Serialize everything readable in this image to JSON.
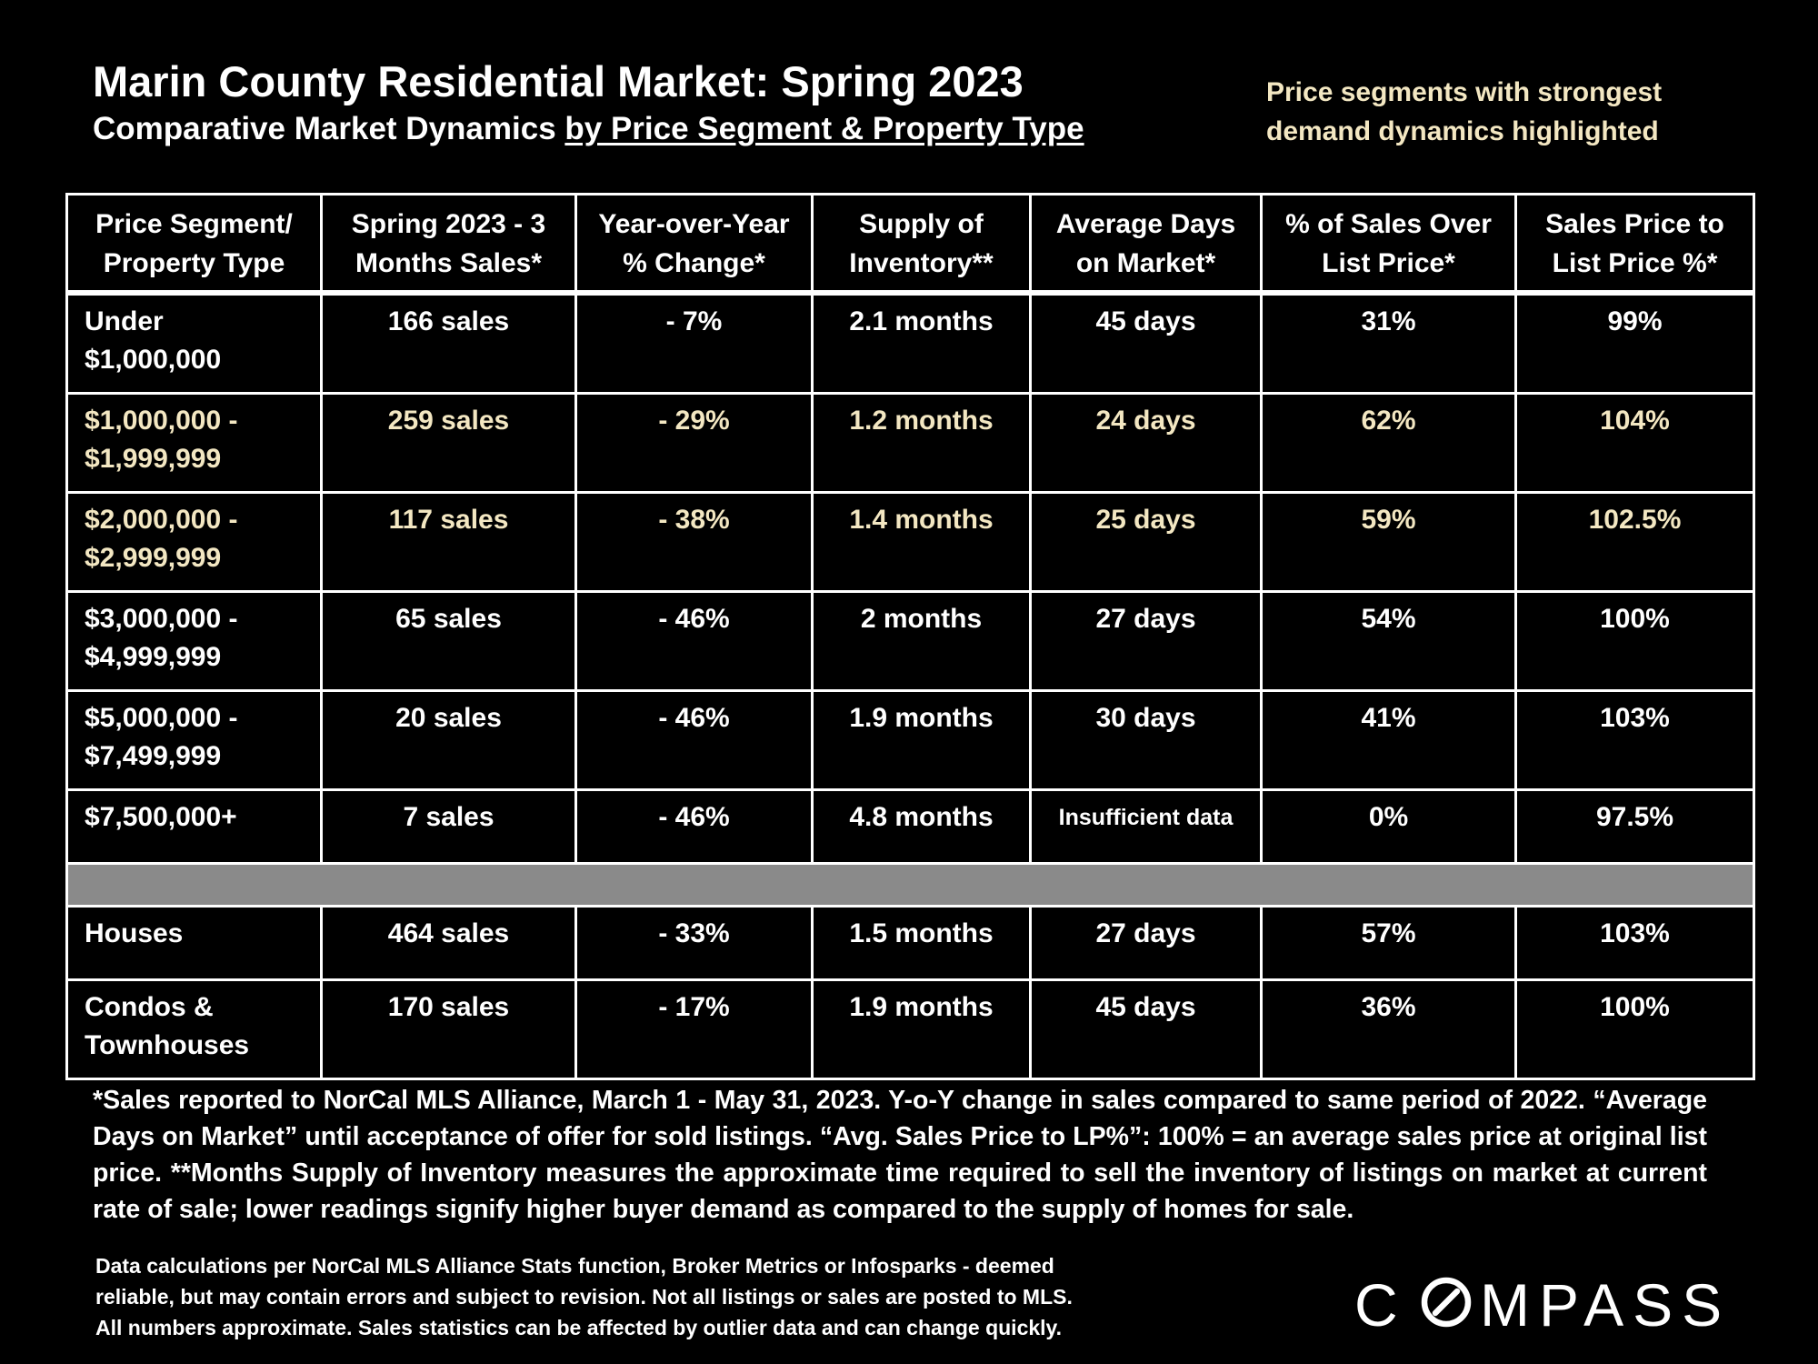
{
  "header": {
    "title": "Marin County Residential Market:  Spring 2023",
    "subtitle_plain": "Comparative Market Dynamics ",
    "subtitle_underlined": "by Price Segment & Property Type",
    "highlight_note_line1": "Price segments with strongest",
    "highlight_note_line2": "demand dynamics highlighted",
    "highlight_color": "#f3e7c2"
  },
  "table": {
    "columns": [
      {
        "line1": "Price Segment/",
        "line2": "Property Type"
      },
      {
        "line1": "Spring 2023 - 3",
        "line2": "Months Sales*"
      },
      {
        "line1": "Year-over-Year",
        "line2": "% Change*"
      },
      {
        "line1": "Supply of",
        "line2": "Inventory**"
      },
      {
        "line1": "Average Days",
        "line2": "on Market*"
      },
      {
        "line1": "% of Sales Over",
        "line2": "List Price*"
      },
      {
        "line1": "Sales Price to",
        "line2": "List Price %*"
      }
    ],
    "rows": [
      {
        "seg1": "Under",
        "seg2": "$1,000,000",
        "sales": "166 sales",
        "yoy": "- 7%",
        "supply": "2.1 months",
        "dom": "45 days",
        "over_list": "31%",
        "sp_lp": "99%",
        "highlighted": false
      },
      {
        "seg1": "$1,000,000 -",
        "seg2": "$1,999,999",
        "sales": "259 sales",
        "yoy": "- 29%",
        "supply": "1.2 months",
        "dom": "24 days",
        "over_list": "62%",
        "sp_lp": "104%",
        "highlighted": true
      },
      {
        "seg1": "$2,000,000 -",
        "seg2": "$2,999,999",
        "sales": "117 sales",
        "yoy": "- 38%",
        "supply": "1.4 months",
        "dom": "25 days",
        "over_list": "59%",
        "sp_lp": "102.5%",
        "highlighted": true
      },
      {
        "seg1": "$3,000,000 -",
        "seg2": "$4,999,999",
        "sales": "65 sales",
        "yoy": "- 46%",
        "supply": "2 months",
        "dom": "27 days",
        "over_list": "54%",
        "sp_lp": "100%",
        "highlighted": false
      },
      {
        "seg1": "$5,000,000 -",
        "seg2": "$7,499,999",
        "sales": "20 sales",
        "yoy": "- 46%",
        "supply": "1.9 months",
        "dom": "30 days",
        "over_list": "41%",
        "sp_lp": "103%",
        "highlighted": false
      },
      {
        "seg1": "$7,500,000+",
        "sales": "7 sales",
        "yoy": "- 46%",
        "supply": "4.8 months",
        "dom": "Insufficient data",
        "over_list": "0%",
        "sp_lp": "97.5%",
        "highlighted": false
      }
    ],
    "type_rows": [
      {
        "seg1": "Houses",
        "sales": "464 sales",
        "yoy": "- 33%",
        "supply": "1.5 months",
        "dom": "27 days",
        "over_list": "57%",
        "sp_lp": "103%"
      },
      {
        "seg1": "Condos &",
        "seg2": "Townhouses",
        "sales": "170 sales",
        "yoy": "- 17%",
        "supply": "1.9 months",
        "dom": "45 days",
        "over_list": "36%",
        "sp_lp": "100%"
      }
    ]
  },
  "footnote": "*Sales reported to NorCal MLS Alliance, March 1 - May 31, 2023. Y-o-Y change in sales compared to same period of 2022. “Average Days on Market” until acceptance of offer for sold listings. “Avg. Sales Price to LP%”: 100% = an average sales price at original list price. **Months Supply of Inventory measures the approximate time required to sell the inventory of listings on market at current rate of sale; lower readings signify higher buyer demand as compared to the supply of homes for sale.",
  "disclaimer": {
    "line1": "Data calculations per NorCal MLS Alliance Stats function, Broker Metrics or Infosparks - deemed",
    "line2": "reliable, but may contain errors and subject to revision.  Not all listings or sales are posted to MLS.",
    "line3": "All numbers approximate. Sales statistics can be affected by outlier data and can change quickly."
  },
  "logo": {
    "text": "COMPASS"
  }
}
